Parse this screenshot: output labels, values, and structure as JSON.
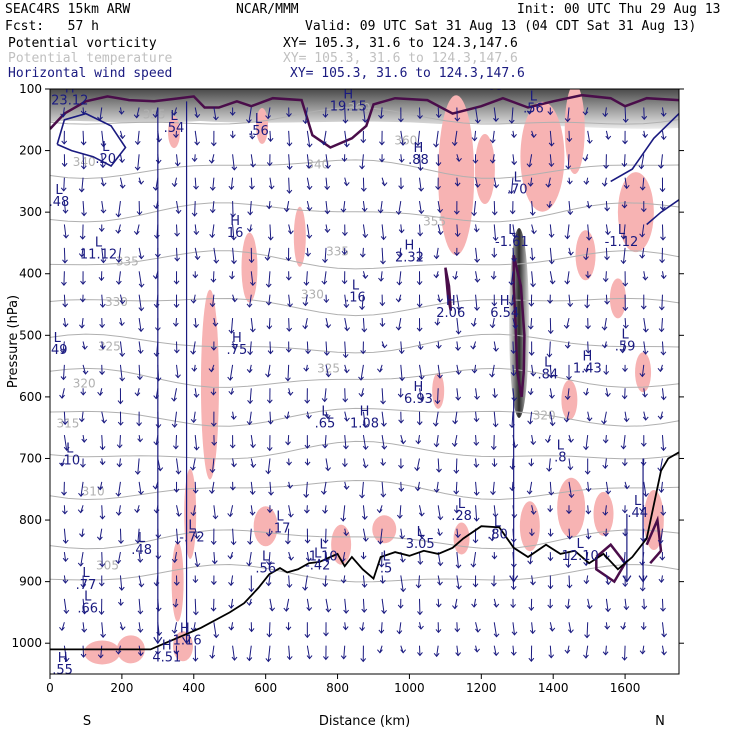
{
  "header": {
    "model": "SEAC4RS 15km ARW",
    "org": "NCAR/MMM",
    "init": "Init: 00 UTC Thu 29 Aug 13",
    "fcst": "Fcst:   57 h",
    "valid": "Valid: 09 UTC Sat 31 Aug 13 (04 CDT Sat 31 Aug 13)",
    "fields": [
      {
        "name": "Potential vorticity",
        "xy": "XY= 105.3, 31.6 to 124.3,147.6",
        "color": "#000000"
      },
      {
        "name": "Potential temperature",
        "xy": "XY= 105.3, 31.6 to 124.3,147.6",
        "color": "#b8b8b8"
      },
      {
        "name": "Horizontal wind speed",
        "xy": "XY= 105.3, 31.6 to 124.3,147.6",
        "color": "#1a1a80"
      }
    ]
  },
  "chart_data": {
    "type": "cross-section",
    "xlabel": "Distance (km)",
    "ylabel": "Pressure (hPa)",
    "xlim": [
      0,
      1750
    ],
    "ylim": [
      1050,
      100
    ],
    "xticks": [
      0,
      200,
      400,
      600,
      800,
      1000,
      1200,
      1400,
      1600
    ],
    "yticks": [
      100,
      200,
      300,
      400,
      500,
      600,
      700,
      800,
      900,
      1000
    ],
    "endpoints": {
      "left": "S",
      "right": "N"
    },
    "colors": {
      "pv": "#4a0d4a",
      "theta": "#b0b0b0",
      "wind": "#1a1a80",
      "highlight": "#f7b3b3",
      "terrain": "#000000"
    },
    "theta_contours": [
      {
        "label": "355",
        "x": 290,
        "y": 148
      },
      {
        "label": "340",
        "x": 95,
        "y": 225
      },
      {
        "label": "340",
        "x": 745,
        "y": 229
      },
      {
        "label": "335",
        "x": 800,
        "y": 370
      },
      {
        "label": "335",
        "x": 215,
        "y": 387
      },
      {
        "label": "330",
        "x": 730,
        "y": 440
      },
      {
        "label": "330",
        "x": 185,
        "y": 452
      },
      {
        "label": "325",
        "x": 165,
        "y": 525
      },
      {
        "label": "325",
        "x": 775,
        "y": 560
      },
      {
        "label": "320",
        "x": 95,
        "y": 585
      },
      {
        "label": "320",
        "x": 1375,
        "y": 637
      },
      {
        "label": "315",
        "x": 50,
        "y": 650
      },
      {
        "label": "310",
        "x": 120,
        "y": 760
      },
      {
        "label": "305",
        "x": 160,
        "y": 880
      },
      {
        "label": "360",
        "x": 990,
        "y": 190
      },
      {
        "label": "360",
        "x": 860,
        "y": 137
      },
      {
        "label": "355",
        "x": 1070,
        "y": 322
      }
    ],
    "extrema": [
      {
        "type": "H",
        "value": "23.12",
        "x": 55,
        "y": 125
      },
      {
        "type": "L",
        "value": ".20",
        "x": 155,
        "y": 220
      },
      {
        "type": "L",
        "value": ".54",
        "x": 345,
        "y": 170
      },
      {
        "type": "L",
        "value": ".56",
        "x": 580,
        "y": 175
      },
      {
        "type": "H",
        "value": "19.15",
        "x": 830,
        "y": 135
      },
      {
        "type": "L",
        "value": ".48",
        "x": 25,
        "y": 290
      },
      {
        "type": "H",
        "value": "16",
        "x": 515,
        "y": 340
      },
      {
        "type": "H",
        "value": ".88",
        "x": 1025,
        "y": 222
      },
      {
        "type": "H",
        "value": "65",
        "x": 1240,
        "y": 102
      },
      {
        "type": "L",
        "value": ".56",
        "x": 1345,
        "y": 138
      },
      {
        "type": "L",
        "value": ".70",
        "x": 1300,
        "y": 270
      },
      {
        "type": "L",
        "value": "-1.61",
        "x": 1285,
        "y": 355
      },
      {
        "type": "L",
        "value": "-1.12",
        "x": 1590,
        "y": 355
      },
      {
        "type": "L",
        "value": "11.12",
        "x": 135,
        "y": 375
      },
      {
        "type": "H",
        "value": "2.32",
        "x": 1000,
        "y": 380
      },
      {
        "type": "L",
        "value": ".16",
        "x": 850,
        "y": 445
      },
      {
        "type": "H",
        "value": "2.06",
        "x": 1115,
        "y": 470
      },
      {
        "type": "H",
        "value": "6.54",
        "x": 1265,
        "y": 470
      },
      {
        "type": "H",
        "value": ".75",
        "x": 520,
        "y": 530
      },
      {
        "type": "L",
        "value": ".49",
        "x": 20,
        "y": 530
      },
      {
        "type": "L",
        "value": ".59",
        "x": 1600,
        "y": 525
      },
      {
        "type": "H",
        "value": "1.43",
        "x": 1495,
        "y": 560
      },
      {
        "type": "L",
        "value": ".84",
        "x": 1385,
        "y": 570
      },
      {
        "type": "H",
        "value": "6.93",
        "x": 1025,
        "y": 610
      },
      {
        "type": "L",
        "value": ".65",
        "x": 765,
        "y": 650
      },
      {
        "type": "H",
        "value": "1.08",
        "x": 875,
        "y": 650
      },
      {
        "type": "L",
        "value": ".10",
        "x": 55,
        "y": 710
      },
      {
        "type": "L",
        "value": ".8",
        "x": 1420,
        "y": 705
      },
      {
        "type": "L",
        "value": ".44",
        "x": 1635,
        "y": 795
      },
      {
        "type": "L",
        "value": ".28",
        "x": 1145,
        "y": 800
      },
      {
        "type": "L",
        "value": ".80",
        "x": 1245,
        "y": 830
      },
      {
        "type": "L",
        "value": ".48",
        "x": 255,
        "y": 855
      },
      {
        "type": "L",
        "value": "-.72",
        "x": 395,
        "y": 835
      },
      {
        "type": "L",
        "value": ".17",
        "x": 640,
        "y": 820
      },
      {
        "type": "L",
        "value": "3.05",
        "x": 1030,
        "y": 845
      },
      {
        "type": "L",
        "value": "-.42",
        "x": 745,
        "y": 880
      },
      {
        "type": "L",
        "value": "1.10",
        "x": 760,
        "y": 866
      },
      {
        "type": "L",
        "value": ".5",
        "x": 935,
        "y": 885
      },
      {
        "type": "L",
        "value": ".56",
        "x": 600,
        "y": 885
      },
      {
        "type": "L",
        "value": "12.10",
        "x": 1475,
        "y": 865
      },
      {
        "type": "L",
        "value": ".77",
        "x": 100,
        "y": 912
      },
      {
        "type": "L",
        "value": ".66",
        "x": 105,
        "y": 950
      },
      {
        "type": "H",
        "value": "4.51",
        "x": 325,
        "y": 1030
      },
      {
        "type": "H",
        "value": "-1.16",
        "x": 375,
        "y": 1002
      },
      {
        "type": "H",
        "value": ".55",
        "x": 35,
        "y": 1050
      }
    ]
  }
}
